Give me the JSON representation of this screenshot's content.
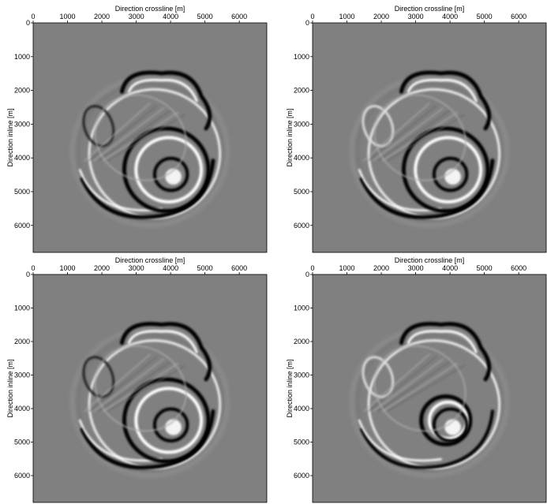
{
  "chart_data": [
    {
      "type": "image",
      "xlabel": "Direction crossline [m]",
      "ylabel": "Direction inline [m]",
      "xlim": [
        0,
        6800
      ],
      "ylim": [
        0,
        6800
      ],
      "y_inverted": true,
      "x_axis_top": true,
      "xticks": [
        0,
        1000,
        2000,
        3000,
        4000,
        5000,
        6000
      ],
      "yticks": [
        0,
        1000,
        2000,
        3000,
        4000,
        5000,
        6000
      ]
    },
    {
      "type": "image",
      "xlabel": "Direction crossline [m]",
      "ylabel": "Direction inline [m]",
      "xlim": [
        0,
        6800
      ],
      "ylim": [
        0,
        6800
      ],
      "y_inverted": true,
      "x_axis_top": true,
      "xticks": [
        0,
        1000,
        2000,
        3000,
        4000,
        5000,
        6000
      ],
      "yticks": [
        0,
        1000,
        2000,
        3000,
        4000,
        5000,
        6000
      ]
    },
    {
      "type": "image",
      "xlabel": "Direction crossline [m]",
      "ylabel": "Direction inline [m]",
      "xlim": [
        0,
        6800
      ],
      "ylim": [
        0,
        6800
      ],
      "y_inverted": true,
      "x_axis_top": true,
      "xticks": [
        0,
        1000,
        2000,
        3000,
        4000,
        5000,
        6000
      ],
      "yticks": [
        0,
        1000,
        2000,
        3000,
        4000,
        5000,
        6000
      ]
    },
    {
      "type": "image",
      "xlabel": "Direction crossline [m]",
      "ylabel": "Direction inline [m]",
      "xlim": [
        0,
        6800
      ],
      "ylim": [
        0,
        6800
      ],
      "y_inverted": true,
      "x_axis_top": true,
      "xticks": [
        0,
        1000,
        2000,
        3000,
        4000,
        5000,
        6000
      ],
      "yticks": [
        0,
        1000,
        2000,
        3000,
        4000,
        5000,
        6000
      ]
    }
  ]
}
